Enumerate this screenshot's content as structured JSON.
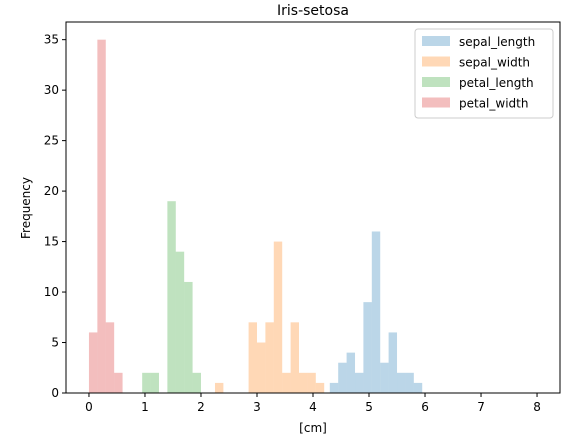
{
  "chart_data": {
    "type": "bar",
    "title": "Iris-setosa",
    "xlabel": "[cm]",
    "ylabel": "Frequency",
    "xlim": [
      -0.41,
      8.41
    ],
    "ylim": [
      0,
      36.75
    ],
    "xticks": [
      0,
      1,
      2,
      3,
      4,
      5,
      6,
      7,
      8
    ],
    "yticks": [
      0,
      5,
      10,
      15,
      20,
      25,
      30,
      35
    ],
    "grid": false,
    "legend_position": "top-right",
    "bin_width": 0.15,
    "series": [
      {
        "name": "sepal_length",
        "color": "#1f77b4",
        "opacity": 0.3,
        "bin_start": 4.3,
        "counts": [
          1,
          3,
          4,
          2,
          9,
          16,
          3,
          6,
          2,
          2,
          1
        ]
      },
      {
        "name": "sepal_width",
        "color": "#ff7f0e",
        "opacity": 0.3,
        "bin_start": 2.25,
        "counts": [
          1,
          0,
          0,
          0,
          7,
          5,
          7,
          15,
          2,
          7,
          2,
          2,
          1
        ]
      },
      {
        "name": "petal_length",
        "color": "#2ca02c",
        "opacity": 0.3,
        "bin_start": 0.95,
        "counts": [
          2,
          2,
          0,
          19,
          14,
          11,
          2
        ]
      },
      {
        "name": "petal_width",
        "color": "#d62728",
        "opacity": 0.3,
        "bin_start": 0,
        "counts": [
          6,
          35,
          7,
          2
        ]
      }
    ]
  }
}
